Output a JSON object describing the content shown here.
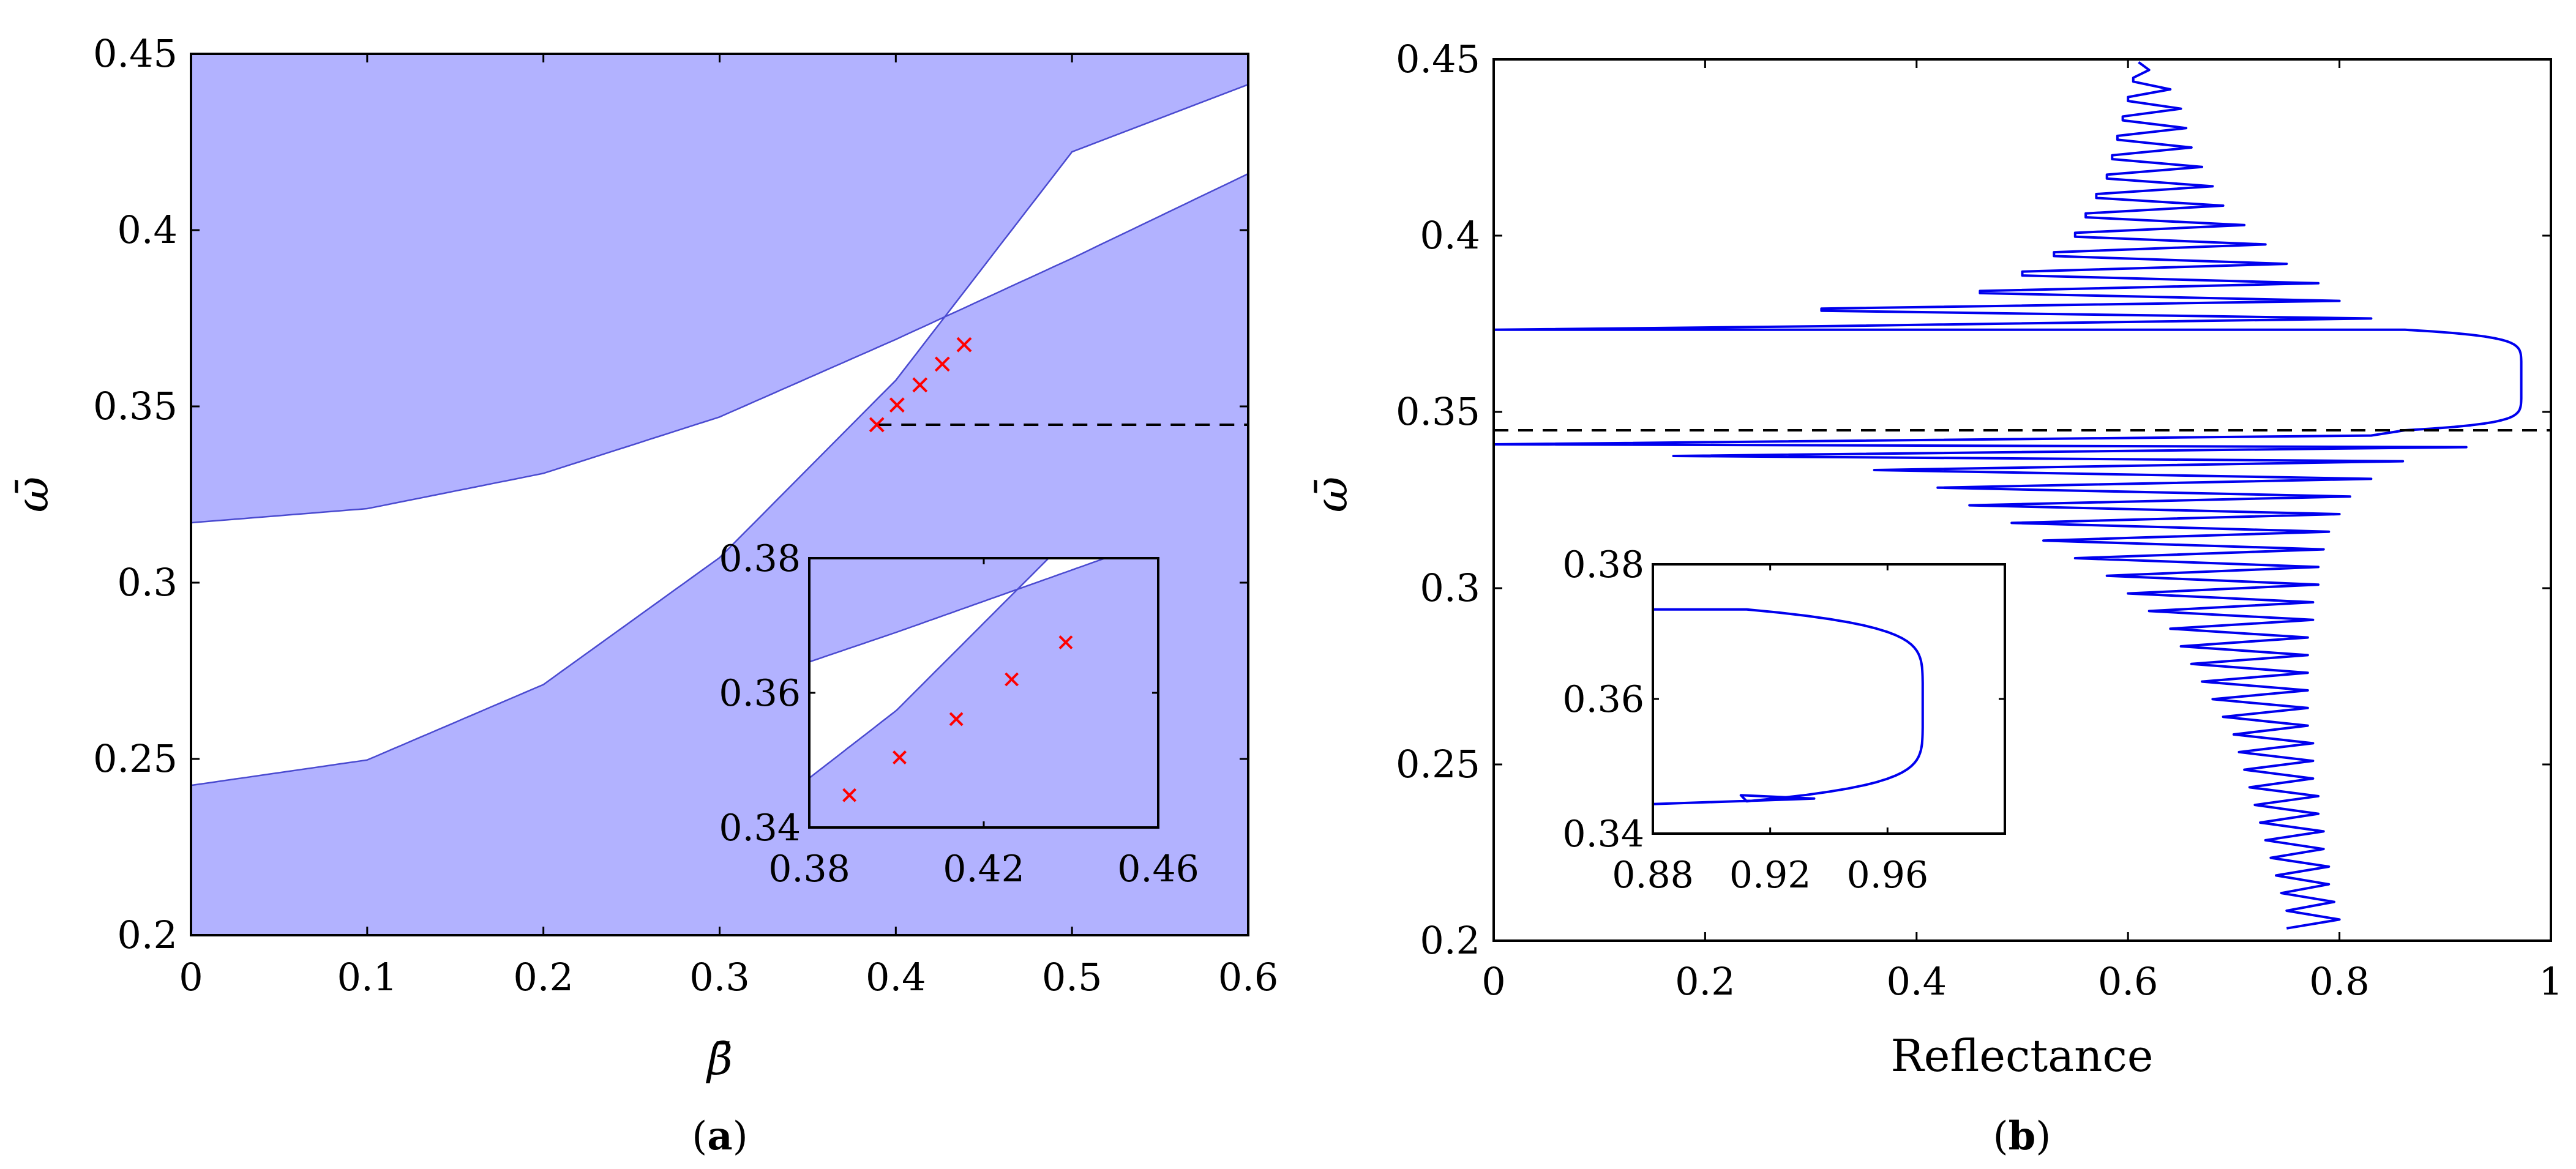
{
  "chart_data": [
    {
      "panel": "a",
      "type": "area",
      "caption": "a",
      "xlabel": "β̄",
      "ylabel": "ω̄",
      "xlim": [
        0,
        0.6
      ],
      "ylim": [
        0.2,
        0.45
      ],
      "xticks": [
        0,
        0.1,
        0.2,
        0.3,
        0.4,
        0.5,
        0.6
      ],
      "xtick_labels": [
        "0",
        "0.1",
        "0.2",
        "0.3",
        "0.4",
        "0.5",
        "0.6"
      ],
      "yticks": [
        0.2,
        0.25,
        0.3,
        0.35,
        0.4,
        0.45
      ],
      "ytick_labels": [
        "0.2",
        "0.25",
        "0.3",
        "0.35",
        "0.4",
        "0.45"
      ],
      "band_color": "#b2b2ff",
      "band_edge_color": "#4a4ad0",
      "upper_band_edge": {
        "x": [
          0,
          0.1,
          0.2,
          0.3,
          0.4,
          0.5,
          0.6
        ],
        "y": [
          0.317,
          0.321,
          0.331,
          0.347,
          0.369,
          0.392,
          0.416
        ]
      },
      "lower_band_edge": {
        "x": [
          0,
          0.1,
          0.2,
          0.3,
          0.4,
          0.5,
          0.6
        ],
        "y": [
          0.2425,
          0.2497,
          0.2711,
          0.3071,
          0.3574,
          0.4222,
          0.4413
        ]
      },
      "markers": {
        "color": "#ff0000",
        "x": [
          0.3892,
          0.4007,
          0.4137,
          0.4264,
          0.4388
        ],
        "y": [
          0.3448,
          0.3504,
          0.3561,
          0.362,
          0.3675
        ]
      },
      "dashed_line": {
        "y": 0.3448,
        "x_from": 0.3892,
        "x_to": 0.6
      },
      "inset": {
        "xlim": [
          0.38,
          0.46
        ],
        "ylim": [
          0.34,
          0.38
        ],
        "xticks": [
          0.38,
          0.42,
          0.46
        ],
        "xtick_labels": [
          "0.38",
          "0.42",
          "0.46"
        ],
        "yticks": [
          0.34,
          0.36,
          0.38
        ],
        "ytick_labels": [
          "0.34",
          "0.36",
          "0.38"
        ]
      }
    },
    {
      "panel": "b",
      "type": "line",
      "caption": "b",
      "xlabel": "Reflectance",
      "ylabel": "ω̄",
      "xlim": [
        0,
        1
      ],
      "ylim": [
        0.2,
        0.45
      ],
      "xticks": [
        0,
        0.2,
        0.4,
        0.6,
        0.8,
        1
      ],
      "xtick_labels": [
        "0",
        "0.2",
        "0.4",
        "0.6",
        "0.8",
        "1"
      ],
      "yticks": [
        0.2,
        0.25,
        0.3,
        0.35,
        0.4,
        0.45
      ],
      "ytick_labels": [
        "0.2",
        "0.25",
        "0.3",
        "0.35",
        "0.4",
        "0.45"
      ],
      "line_color": "#0000ee",
      "dashed_line": {
        "y": 0.3448
      },
      "stop_band": {
        "omega_low": 0.3448,
        "omega_high": 0.3733,
        "peak_reflectance": 0.972
      },
      "above_band_fringes": {
        "omega": [
          0.3765,
          0.3815,
          0.3865,
          0.392,
          0.3975,
          0.403,
          0.4085,
          0.414,
          0.4195,
          0.425,
          0.4305,
          0.436,
          0.4415,
          0.447
        ],
        "min_reflectance": [
          0.31,
          0.46,
          0.5,
          0.53,
          0.55,
          0.56,
          0.57,
          0.58,
          0.585,
          0.59,
          0.595,
          0.6,
          0.605,
          0.61
        ],
        "max_reflectance": [
          0.83,
          0.8,
          0.78,
          0.75,
          0.73,
          0.71,
          0.69,
          0.68,
          0.67,
          0.66,
          0.655,
          0.65,
          0.64,
          0.62
        ]
      },
      "below_band_fringes": {
        "omega": [
          0.34,
          0.336,
          0.331,
          0.326,
          0.321,
          0.316,
          0.311,
          0.306,
          0.301,
          0.296,
          0.291,
          0.286,
          0.281,
          0.276,
          0.271,
          0.266,
          0.261,
          0.256,
          0.251,
          0.246,
          0.241,
          0.236,
          0.231,
          0.226,
          0.221,
          0.216,
          0.211,
          0.206
        ],
        "min_reflectance": [
          0.0,
          0.17,
          0.36,
          0.42,
          0.45,
          0.49,
          0.52,
          0.55,
          0.58,
          0.6,
          0.62,
          0.64,
          0.65,
          0.66,
          0.67,
          0.68,
          0.69,
          0.7,
          0.705,
          0.71,
          0.715,
          0.72,
          0.725,
          0.73,
          0.735,
          0.74,
          0.745,
          0.75
        ],
        "max_reflectance": [
          0.92,
          0.86,
          0.83,
          0.81,
          0.8,
          0.79,
          0.785,
          0.78,
          0.78,
          0.775,
          0.775,
          0.77,
          0.77,
          0.77,
          0.77,
          0.77,
          0.77,
          0.775,
          0.775,
          0.775,
          0.78,
          0.78,
          0.785,
          0.785,
          0.79,
          0.79,
          0.795,
          0.8
        ]
      },
      "inset": {
        "xlim": [
          0.88,
          1.0
        ],
        "ylim": [
          0.34,
          0.38
        ],
        "xticks": [
          0.88,
          0.92,
          0.96
        ],
        "xtick_labels": [
          "0.88",
          "0.92",
          "0.96"
        ],
        "yticks": [
          0.34,
          0.36,
          0.38
        ],
        "ytick_labels": [
          "0.34",
          "0.36",
          "0.38"
        ]
      }
    }
  ]
}
